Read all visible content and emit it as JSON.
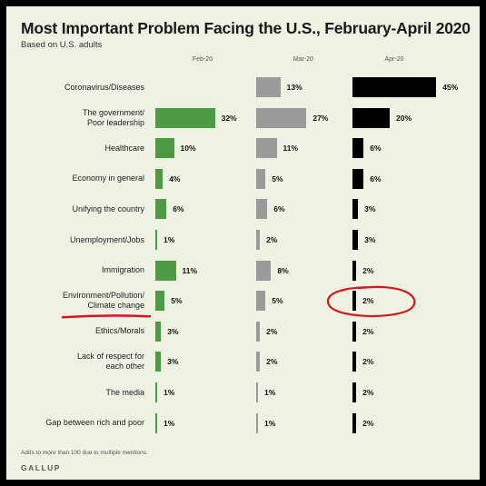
{
  "header": {
    "title": "Most Important Problem Facing the U.S., February-April 2020",
    "subtitle": "Based on U.S. adults"
  },
  "footer": {
    "note": "Adds to more than 100 due to multiple mentions.",
    "brand": "GALLUP"
  },
  "colors": {
    "background": "#eef2e3",
    "feb": "#4c9a45",
    "mar": "#9a9a9a",
    "apr": "#000000",
    "annotation": "#d8141c"
  },
  "chart_data": {
    "type": "bar",
    "orientation": "horizontal",
    "unit": "%",
    "xlim": [
      0,
      45
    ],
    "categories": [
      [
        "Coronavirus/Diseases"
      ],
      [
        "The government/",
        "Poor leadership"
      ],
      [
        "Healthcare"
      ],
      [
        "Economy in general"
      ],
      [
        "Unifying the country"
      ],
      [
        "Unemployment/Jobs"
      ],
      [
        "Immigration"
      ],
      [
        "Environment/Pollution/",
        "Climate change"
      ],
      [
        "Ethics/Morals"
      ],
      [
        "Lack of respect for",
        "each other"
      ],
      [
        "The media"
      ],
      [
        "Gap between rich and poor"
      ]
    ],
    "series": [
      {
        "name": "Feb-20",
        "color": "#4c9a45",
        "values": [
          null,
          32,
          10,
          4,
          6,
          1,
          11,
          5,
          3,
          3,
          1,
          1
        ]
      },
      {
        "name": "Mar-20",
        "color": "#9a9a9a",
        "values": [
          13,
          27,
          11,
          5,
          6,
          2,
          8,
          5,
          2,
          2,
          1,
          1
        ]
      },
      {
        "name": "Apr-20",
        "color": "#000000",
        "values": [
          45,
          20,
          6,
          6,
          3,
          3,
          2,
          2,
          2,
          2,
          2,
          2
        ]
      }
    ],
    "annotations": [
      {
        "type": "underline",
        "target": "Environment/Pollution/ Climate change"
      },
      {
        "type": "circle",
        "target": "Apr-20",
        "category": "Environment/Pollution/ Climate change",
        "value": 2
      }
    ],
    "grid": false,
    "legend": "none"
  }
}
